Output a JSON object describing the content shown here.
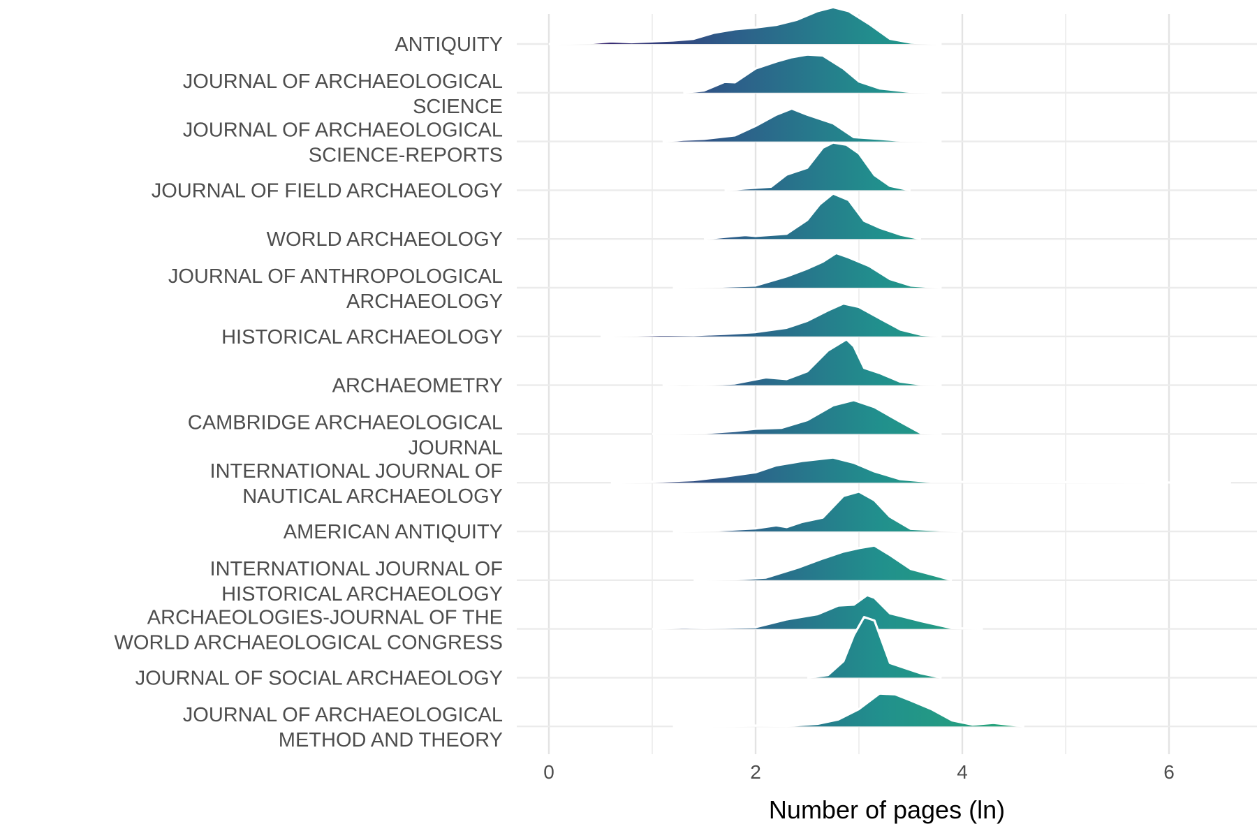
{
  "chart_data": {
    "type": "ridgeline",
    "xlabel": "Number of pages (ln)",
    "xlim": [
      0,
      6.7
    ],
    "xticks": [
      0,
      2,
      4,
      6
    ],
    "grid": true,
    "fill_gradient": [
      "#3b2470",
      "#2d5f8a",
      "#21908d",
      "#27a777"
    ],
    "gradient_x_range": [
      0.4,
      4.6
    ],
    "outline_color": "#ffffff",
    "series": [
      {
        "label": "ANTIQUITY",
        "label_lines": [
          "ANTIQUITY"
        ],
        "density": [
          [
            0,
            0
          ],
          [
            0.4,
            0.02
          ],
          [
            0.6,
            0.06
          ],
          [
            0.8,
            0.04
          ],
          [
            1.0,
            0.06
          ],
          [
            1.2,
            0.08
          ],
          [
            1.4,
            0.12
          ],
          [
            1.6,
            0.26
          ],
          [
            1.8,
            0.34
          ],
          [
            2.0,
            0.38
          ],
          [
            2.2,
            0.44
          ],
          [
            2.4,
            0.56
          ],
          [
            2.6,
            0.76
          ],
          [
            2.75,
            0.85
          ],
          [
            2.9,
            0.76
          ],
          [
            3.1,
            0.46
          ],
          [
            3.3,
            0.12
          ],
          [
            3.5,
            0.03
          ],
          [
            3.8,
            0
          ]
        ]
      },
      {
        "label": "JOURNAL OF ARCHAEOLOGICAL SCIENCE",
        "label_lines": [
          "JOURNAL OF ARCHAEOLOGICAL",
          "SCIENCE"
        ],
        "density": [
          [
            1.3,
            0
          ],
          [
            1.5,
            0.05
          ],
          [
            1.7,
            0.25
          ],
          [
            1.8,
            0.24
          ],
          [
            2.0,
            0.56
          ],
          [
            2.2,
            0.72
          ],
          [
            2.35,
            0.82
          ],
          [
            2.5,
            0.88
          ],
          [
            2.65,
            0.86
          ],
          [
            2.85,
            0.56
          ],
          [
            3.0,
            0.26
          ],
          [
            3.2,
            0.1
          ],
          [
            3.5,
            0.02
          ],
          [
            3.8,
            0
          ]
        ]
      },
      {
        "label": "JOURNAL OF ARCHAEOLOGICAL SCIENCE-REPORTS",
        "label_lines": [
          "JOURNAL OF ARCHAEOLOGICAL",
          "SCIENCE-REPORTS"
        ],
        "density": [
          [
            1.1,
            0
          ],
          [
            1.3,
            0.04
          ],
          [
            1.5,
            0.06
          ],
          [
            1.8,
            0.14
          ],
          [
            2.0,
            0.36
          ],
          [
            2.2,
            0.62
          ],
          [
            2.35,
            0.76
          ],
          [
            2.5,
            0.62
          ],
          [
            2.75,
            0.42
          ],
          [
            2.95,
            0.1
          ],
          [
            3.2,
            0.06
          ],
          [
            3.4,
            0.02
          ],
          [
            3.8,
            0
          ]
        ]
      },
      {
        "label": "JOURNAL OF FIELD ARCHAEOLOGY",
        "label_lines": [
          "JOURNAL OF FIELD ARCHAEOLOGY"
        ],
        "density": [
          [
            1.7,
            0
          ],
          [
            1.9,
            0.04
          ],
          [
            2.15,
            0.08
          ],
          [
            2.3,
            0.36
          ],
          [
            2.5,
            0.52
          ],
          [
            2.65,
            0.98
          ],
          [
            2.75,
            1.1
          ],
          [
            2.88,
            1.05
          ],
          [
            3.0,
            0.85
          ],
          [
            3.15,
            0.35
          ],
          [
            3.3,
            0.1
          ],
          [
            3.5,
            0
          ]
        ]
      },
      {
        "label": "WORLD ARCHAEOLOGY",
        "label_lines": [
          "WORLD ARCHAEOLOGY"
        ],
        "density": [
          [
            1.5,
            0
          ],
          [
            1.75,
            0.06
          ],
          [
            1.9,
            0.09
          ],
          [
            2.0,
            0.07
          ],
          [
            2.3,
            0.12
          ],
          [
            2.5,
            0.44
          ],
          [
            2.62,
            0.8
          ],
          [
            2.75,
            1.05
          ],
          [
            2.9,
            0.9
          ],
          [
            3.05,
            0.42
          ],
          [
            3.2,
            0.26
          ],
          [
            3.4,
            0.1
          ],
          [
            3.6,
            0
          ]
        ]
      },
      {
        "label": "JOURNAL OF ANTHROPOLOGICAL ARCHAEOLOGY",
        "label_lines": [
          "JOURNAL OF ANTHROPOLOGICAL",
          "ARCHAEOLOGY"
        ],
        "density": [
          [
            1.2,
            0
          ],
          [
            1.6,
            0.02
          ],
          [
            2.0,
            0.05
          ],
          [
            2.3,
            0.26
          ],
          [
            2.5,
            0.44
          ],
          [
            2.65,
            0.6
          ],
          [
            2.78,
            0.8
          ],
          [
            2.9,
            0.7
          ],
          [
            3.1,
            0.5
          ],
          [
            3.3,
            0.2
          ],
          [
            3.5,
            0.05
          ],
          [
            3.8,
            0
          ]
        ]
      },
      {
        "label": "HISTORICAL ARCHAEOLOGY",
        "label_lines": [
          "HISTORICAL ARCHAEOLOGY"
        ],
        "density": [
          [
            0.5,
            0
          ],
          [
            0.8,
            0.02
          ],
          [
            1.1,
            0.04
          ],
          [
            1.4,
            0.03
          ],
          [
            1.7,
            0.06
          ],
          [
            2.0,
            0.1
          ],
          [
            2.3,
            0.2
          ],
          [
            2.5,
            0.36
          ],
          [
            2.7,
            0.6
          ],
          [
            2.85,
            0.76
          ],
          [
            3.0,
            0.68
          ],
          [
            3.2,
            0.42
          ],
          [
            3.4,
            0.16
          ],
          [
            3.6,
            0.04
          ],
          [
            3.8,
            0
          ]
        ]
      },
      {
        "label": "ARCHAEOMETRY",
        "label_lines": [
          "ARCHAEOMETRY"
        ],
        "density": [
          [
            1.1,
            0
          ],
          [
            1.3,
            0.02
          ],
          [
            1.5,
            0.01
          ],
          [
            1.8,
            0.04
          ],
          [
            2.1,
            0.18
          ],
          [
            2.3,
            0.14
          ],
          [
            2.5,
            0.32
          ],
          [
            2.7,
            0.8
          ],
          [
            2.88,
            1.06
          ],
          [
            2.95,
            0.9
          ],
          [
            3.05,
            0.4
          ],
          [
            3.2,
            0.28
          ],
          [
            3.4,
            0.08
          ],
          [
            3.6,
            0.02
          ],
          [
            3.8,
            0
          ]
        ]
      },
      {
        "label": "CAMBRIDGE ARCHAEOLOGICAL JOURNAL",
        "label_lines": [
          "CAMBRIDGE ARCHAEOLOGICAL",
          "JOURNAL"
        ],
        "density": [
          [
            1.0,
            0
          ],
          [
            1.5,
            0.02
          ],
          [
            1.8,
            0.07
          ],
          [
            2.0,
            0.12
          ],
          [
            2.25,
            0.14
          ],
          [
            2.5,
            0.32
          ],
          [
            2.75,
            0.66
          ],
          [
            2.95,
            0.78
          ],
          [
            3.15,
            0.62
          ],
          [
            3.4,
            0.28
          ],
          [
            3.6,
            0.02
          ],
          [
            3.8,
            0
          ]
        ]
      },
      {
        "label": "INTERNATIONAL JOURNAL OF NAUTICAL ARCHAEOLOGY",
        "label_lines": [
          "INTERNATIONAL JOURNAL OF",
          "NAUTICAL ARCHAEOLOGY"
        ],
        "density": [
          [
            0.6,
            0
          ],
          [
            1.0,
            0.02
          ],
          [
            1.4,
            0.06
          ],
          [
            1.7,
            0.14
          ],
          [
            2.0,
            0.24
          ],
          [
            2.2,
            0.4
          ],
          [
            2.45,
            0.5
          ],
          [
            2.75,
            0.58
          ],
          [
            2.95,
            0.46
          ],
          [
            3.15,
            0.26
          ],
          [
            3.4,
            0.08
          ],
          [
            3.7,
            0.02
          ],
          [
            6.6,
            0
          ]
        ]
      },
      {
        "label": "AMERICAN ANTIQUITY",
        "label_lines": [
          "AMERICAN ANTIQUITY"
        ],
        "density": [
          [
            1.2,
            0
          ],
          [
            1.6,
            0.02
          ],
          [
            2.0,
            0.07
          ],
          [
            2.2,
            0.14
          ],
          [
            2.3,
            0.1
          ],
          [
            2.45,
            0.22
          ],
          [
            2.65,
            0.32
          ],
          [
            2.85,
            0.82
          ],
          [
            3.0,
            0.92
          ],
          [
            3.15,
            0.72
          ],
          [
            3.3,
            0.34
          ],
          [
            3.5,
            0.06
          ],
          [
            4.0,
            0
          ]
        ]
      },
      {
        "label": "INTERNATIONAL JOURNAL OF HISTORICAL ARCHAEOLOGY",
        "label_lines": [
          "INTERNATIONAL JOURNAL OF",
          "HISTORICAL ARCHAEOLOGY"
        ],
        "density": [
          [
            1.4,
            0
          ],
          [
            1.8,
            0.02
          ],
          [
            2.1,
            0.06
          ],
          [
            2.4,
            0.28
          ],
          [
            2.65,
            0.5
          ],
          [
            2.85,
            0.66
          ],
          [
            3.0,
            0.74
          ],
          [
            3.15,
            0.8
          ],
          [
            3.3,
            0.58
          ],
          [
            3.5,
            0.26
          ],
          [
            3.75,
            0.1
          ],
          [
            3.9,
            0
          ]
        ]
      },
      {
        "label": "ARCHAEOLOGIES-JOURNAL OF THE WORLD ARCHAEOLOGICAL CONGRESS",
        "label_lines": [
          "ARCHAEOLOGIES-JOURNAL OF THE",
          "WORLD ARCHAEOLOGICAL CONGRESS"
        ],
        "density": [
          [
            1.0,
            0
          ],
          [
            1.3,
            0.03
          ],
          [
            1.5,
            0.02
          ],
          [
            2.0,
            0.04
          ],
          [
            2.3,
            0.22
          ],
          [
            2.6,
            0.34
          ],
          [
            2.8,
            0.54
          ],
          [
            2.95,
            0.56
          ],
          [
            3.08,
            0.78
          ],
          [
            3.15,
            0.72
          ],
          [
            3.3,
            0.36
          ],
          [
            3.6,
            0.18
          ],
          [
            3.9,
            0.02
          ],
          [
            4.2,
            0
          ]
        ]
      },
      {
        "label": "JOURNAL OF SOCIAL ARCHAEOLOGY",
        "label_lines": [
          "JOURNAL OF SOCIAL ARCHAEOLOGY"
        ],
        "density": [
          [
            2.5,
            0
          ],
          [
            2.7,
            0.06
          ],
          [
            2.85,
            0.38
          ],
          [
            2.95,
            0.98
          ],
          [
            3.05,
            1.4
          ],
          [
            3.15,
            1.32
          ],
          [
            3.3,
            0.34
          ],
          [
            3.45,
            0.22
          ],
          [
            3.6,
            0.1
          ],
          [
            3.8,
            0
          ]
        ]
      },
      {
        "label": "JOURNAL OF ARCHAEOLOGICAL METHOD AND THEORY",
        "label_lines": [
          "JOURNAL OF ARCHAEOLOGICAL",
          "METHOD AND THEORY"
        ],
        "density": [
          [
            1.2,
            0
          ],
          [
            1.8,
            0.01
          ],
          [
            2.0,
            0.02
          ],
          [
            2.3,
            0.01
          ],
          [
            2.6,
            0.06
          ],
          [
            2.8,
            0.16
          ],
          [
            3.0,
            0.4
          ],
          [
            3.2,
            0.76
          ],
          [
            3.35,
            0.74
          ],
          [
            3.5,
            0.6
          ],
          [
            3.7,
            0.4
          ],
          [
            3.9,
            0.14
          ],
          [
            4.1,
            0.04
          ],
          [
            4.3,
            0.08
          ],
          [
            4.6,
            0
          ]
        ]
      }
    ]
  }
}
